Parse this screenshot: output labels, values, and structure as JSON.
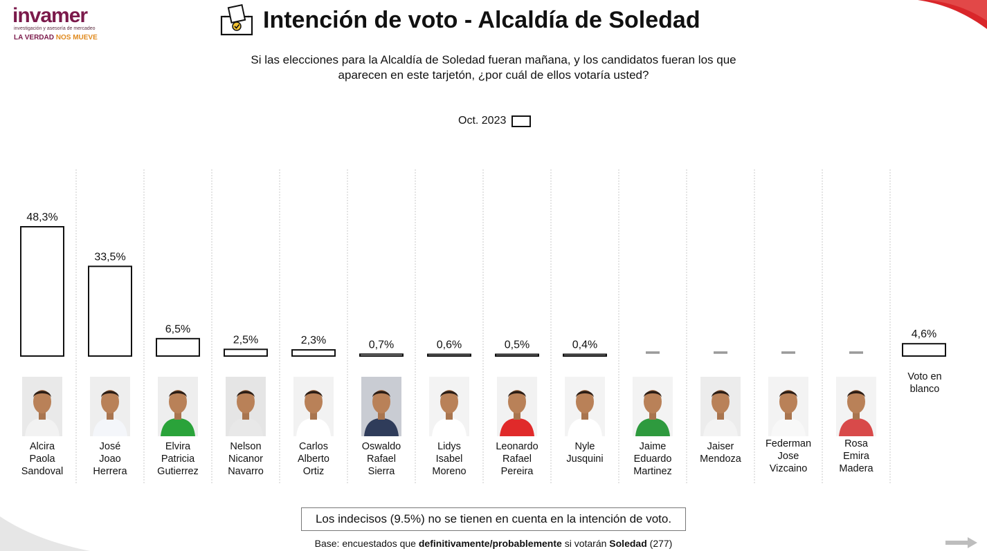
{
  "brand": {
    "name": "invamer",
    "subtitle": "investigación y asesoría de mercadeo",
    "tagline_part1": "LA VERDAD",
    "tagline_part2": "NOS MUEVE"
  },
  "title": "Intención de voto - Alcaldía de Soledad",
  "question_line1": "Si las elecciones para la Alcaldía de Soledad fueran mañana, y los candidatos fueran los que",
  "question_line2": "aparecen en este tarjetón, ¿por cuál de ellos votaría usted?",
  "legend_label": "Oct. 2023",
  "colors": {
    "accent_red": "#d9262a",
    "logo_purple": "#7b1a4b",
    "logo_orange": "#e08a1e",
    "bar_fill": "#ffffff",
    "bar_stroke": "#111111",
    "dash": "#9a9a9a"
  },
  "icons": [
    "ballot-box-icon",
    "next-arrow-icon"
  ],
  "chart_data": {
    "type": "bar",
    "legend": "Oct. 2023",
    "ylim": [
      0,
      50
    ],
    "grid": false,
    "categories": [
      "Alcira\nPaola\nSandoval",
      "José\nJoao\nHerrera",
      "Elvira\nPatricia\nGutierrez",
      "Nelson\nNicanor\nNavarro",
      "Carlos\nAlberto\nOrtiz",
      "Oswaldo\nRafael\nSierra",
      "Lidys\nIsabel\nMoreno",
      "Leonardo\nRafael\nPereira",
      "Nyle\nJusquini",
      "Jaime\nEduardo\nMartinez",
      "Jaiser\nMendoza",
      "Federman\nJose\nVizcaino",
      "Rosa\nEmira\nMadera",
      "Voto en\nblanco"
    ],
    "values": [
      48.3,
      33.5,
      6.5,
      2.5,
      2.3,
      0.7,
      0.6,
      0.5,
      0.4,
      null,
      null,
      null,
      null,
      4.6
    ],
    "labels": [
      "48,3%",
      "33,5%",
      "6,5%",
      "2,5%",
      "2,3%",
      "0,7%",
      "0,6%",
      "0,5%",
      "0,4%",
      "",
      "",
      "",
      "",
      "4,6%"
    ]
  },
  "candidates": [
    {
      "name": "Alcira\nPaola\nSandoval",
      "shirt": "#f2f2f2",
      "bg": "#e9e9e9"
    },
    {
      "name": "José\nJoao\nHerrera",
      "shirt": "#f4f6fa",
      "bg": "#eeeeee"
    },
    {
      "name": "Elvira\nPatricia\nGutierrez",
      "shirt": "#2aa33a",
      "bg": "#eeeeee"
    },
    {
      "name": "Nelson\nNicanor\nNavarro",
      "shirt": "#e8e8e8",
      "bg": "#e5e5e5"
    },
    {
      "name": "Carlos\nAlberto\nOrtiz",
      "shirt": "#ffffff",
      "bg": "#f2f2f2"
    },
    {
      "name": "Oswaldo\nRafael\nSierra",
      "shirt": "#2f3c5a",
      "bg": "#c9ccd3"
    },
    {
      "name": "Lidys\nIsabel\nMoreno",
      "shirt": "#ffffff",
      "bg": "#f3f3f3"
    },
    {
      "name": "Leonardo\nRafael\nPereira",
      "shirt": "#e02a2a",
      "bg": "#f2f2f2"
    },
    {
      "name": "Nyle\nJusquini",
      "shirt": "#ffffff",
      "bg": "#f3f3f3"
    },
    {
      "name": "Jaime\nEduardo\nMartinez",
      "shirt": "#2e9a3e",
      "bg": "#f3f3f3"
    },
    {
      "name": "Jaiser\nMendoza",
      "shirt": "#f3f3f3",
      "bg": "#ececec"
    },
    {
      "name": "Federman\nJose\nVizcaino",
      "shirt": "#f8f8f8",
      "bg": "#f3f3f3"
    },
    {
      "name": "Rosa\nEmira\nMadera",
      "shirt": "#d84a4a",
      "bg": "#f3f3f3"
    }
  ],
  "blank_vote_label": "Voto en\nblanco",
  "note": "Los indecisos (9.5%) no se tienen en cuenta en la intención de voto.",
  "base": {
    "part1": "Base: encuestados que ",
    "part2": "definitivamente/probablemente",
    "part3": " si votarán ",
    "part4": "Soledad",
    "part5": " (277)"
  }
}
